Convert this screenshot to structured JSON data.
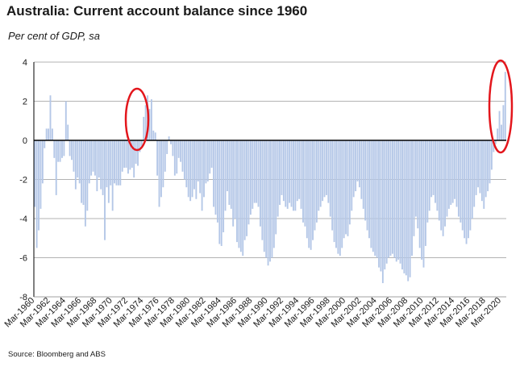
{
  "header": {
    "title": "Australia: Current account balance since 1960",
    "subtitle": "Per cent of GDP, sa"
  },
  "footer": {
    "source": "Source: Bloomberg and ABS"
  },
  "colors": {
    "bar": "#b4c7e7",
    "axis": "#000000",
    "grid": "#9a9a9a",
    "highlight": "#e3161c"
  },
  "chart_data": {
    "type": "bar",
    "title": "Australia: Current account balance since 1960",
    "subtitle": "Per cent of GDP, sa",
    "xlabel": "",
    "ylabel": "",
    "ylim": [
      -8,
      4
    ],
    "yticks": [
      -8,
      -6,
      -4,
      -2,
      0,
      2,
      4
    ],
    "grid": true,
    "legend": "none",
    "x_tick_labels": [
      "Mar-1960",
      "Mar-1962",
      "Mar-1964",
      "Mar-1966",
      "Mar-1968",
      "Mar-1970",
      "Mar-1972",
      "Mar-1974",
      "Mar-1976",
      "Mar-1978",
      "Mar-1980",
      "Mar-1982",
      "Mar-1984",
      "Mar-1986",
      "Mar-1988",
      "Mar-1990",
      "Mar-1992",
      "Mar-1994",
      "Mar-1996",
      "Mar-1998",
      "Mar-2000",
      "Mar-2002",
      "Mar-2004",
      "Mar-2006",
      "Mar-2008",
      "Mar-2010",
      "Mar-2012",
      "Mar-2014",
      "Mar-2016",
      "Mar-2018",
      "Mar-2020"
    ],
    "x_start": "Mar-1960",
    "frequency": "quarterly",
    "annual_series": [
      {
        "year": 1960,
        "values": [
          -3.4,
          -5.5,
          -4.6,
          -3.5
        ]
      },
      {
        "year": 1961,
        "values": [
          -2.2,
          -0.4,
          0.6,
          0.6
        ]
      },
      {
        "year": 1962,
        "values": [
          2.3,
          0.6,
          -0.9,
          -2.8
        ]
      },
      {
        "year": 1963,
        "values": [
          -1.1,
          -1.1,
          -0.9,
          -0.8
        ]
      },
      {
        "year": 1964,
        "values": [
          2.0,
          0.8,
          -0.8,
          -1.0
        ]
      },
      {
        "year": 1965,
        "values": [
          -1.6,
          -2.5,
          -1.9,
          -2.2
        ]
      },
      {
        "year": 1966,
        "values": [
          -3.2,
          -3.3,
          -4.4,
          -3.6
        ]
      },
      {
        "year": 1967,
        "values": [
          -2.2,
          -1.8,
          -1.6,
          -1.8
        ]
      },
      {
        "year": 1968,
        "values": [
          -2.6,
          -1.9,
          -2.5,
          -2.8
        ]
      },
      {
        "year": 1969,
        "values": [
          -5.1,
          -2.4,
          -3.2,
          -2.3
        ]
      },
      {
        "year": 1970,
        "values": [
          -3.6,
          -2.2,
          -2.3,
          -2.3
        ]
      },
      {
        "year": 1971,
        "values": [
          -2.3,
          -1.6,
          -1.4,
          -1.4
        ]
      },
      {
        "year": 1972,
        "values": [
          -1.7,
          -1.5,
          -1.4,
          -1.9
        ]
      },
      {
        "year": 1973,
        "values": [
          -1.2,
          -1.3,
          -0.6,
          -0.3
        ]
      },
      {
        "year": 1974,
        "values": [
          1.2,
          1.8,
          2.3,
          1.6
        ]
      },
      {
        "year": 1975,
        "values": [
          2.1,
          0.5,
          0.4,
          -1.8
        ]
      },
      {
        "year": 1976,
        "values": [
          -3.4,
          -2.9,
          -2.4,
          -1.6
        ]
      },
      {
        "year": 1977,
        "values": [
          -0.7,
          0.2,
          -0.2,
          -0.8
        ]
      },
      {
        "year": 1978,
        "values": [
          -1.8,
          -1.7,
          -0.9,
          -1.1
        ]
      },
      {
        "year": 1979,
        "values": [
          -1.6,
          -2.0,
          -2.4,
          -2.9
        ]
      },
      {
        "year": 1980,
        "values": [
          -3.1,
          -2.9,
          -2.5,
          -3.0
        ]
      },
      {
        "year": 1981,
        "values": [
          -2.1,
          -2.7,
          -3.6,
          -2.9
        ]
      },
      {
        "year": 1982,
        "values": [
          -2.2,
          -2.1,
          -1.7,
          -1.4
        ]
      },
      {
        "year": 1983,
        "values": [
          -3.4,
          -3.8,
          -4.2,
          -5.3
        ]
      },
      {
        "year": 1984,
        "values": [
          -5.4,
          -4.7,
          -3.6,
          -2.6
        ]
      },
      {
        "year": 1985,
        "values": [
          -3.3,
          -3.5,
          -4.4,
          -4.0
        ]
      },
      {
        "year": 1986,
        "values": [
          -5.2,
          -5.5,
          -5.7,
          -5.9
        ]
      },
      {
        "year": 1987,
        "values": [
          -5.1,
          -4.9,
          -4.3,
          -3.8
        ]
      },
      {
        "year": 1988,
        "values": [
          -3.5,
          -3.2,
          -3.2,
          -3.4
        ]
      },
      {
        "year": 1989,
        "values": [
          -4.4,
          -5.1,
          -5.7,
          -6.0
        ]
      },
      {
        "year": 1990,
        "values": [
          -6.4,
          -6.2,
          -6.0,
          -5.5
        ]
      },
      {
        "year": 1991,
        "values": [
          -4.8,
          -3.9,
          -3.3,
          -2.8
        ]
      },
      {
        "year": 1992,
        "values": [
          -3.1,
          -3.4,
          -3.5,
          -3.2
        ]
      },
      {
        "year": 1993,
        "values": [
          -3.4,
          -3.6,
          -3.6,
          -3.1
        ]
      },
      {
        "year": 1994,
        "values": [
          -3.0,
          -3.5,
          -4.2,
          -4.4
        ]
      },
      {
        "year": 1995,
        "values": [
          -5.0,
          -5.5,
          -5.6,
          -5.1
        ]
      },
      {
        "year": 1996,
        "values": [
          -4.6,
          -4.2,
          -3.6,
          -3.4
        ]
      },
      {
        "year": 1997,
        "values": [
          -3.1,
          -2.9,
          -2.8,
          -3.2
        ]
      },
      {
        "year": 1998,
        "values": [
          -3.9,
          -4.6,
          -5.2,
          -5.5
        ]
      },
      {
        "year": 1999,
        "values": [
          -5.8,
          -5.9,
          -5.5,
          -5.0
        ]
      },
      {
        "year": 2000,
        "values": [
          -4.8,
          -4.9,
          -4.3,
          -3.6
        ]
      },
      {
        "year": 2001,
        "values": [
          -2.9,
          -2.6,
          -2.1,
          -2.4
        ]
      },
      {
        "year": 2002,
        "values": [
          -3.0,
          -3.5,
          -4.1,
          -4.6
        ]
      },
      {
        "year": 2003,
        "values": [
          -5.0,
          -5.5,
          -5.7,
          -5.9
        ]
      },
      {
        "year": 2004,
        "values": [
          -6.0,
          -6.5,
          -6.7,
          -7.3
        ]
      },
      {
        "year": 2005,
        "values": [
          -6.6,
          -6.3,
          -6.0,
          -5.9
        ]
      },
      {
        "year": 2006,
        "values": [
          -5.8,
          -6.0,
          -6.2,
          -6.1
        ]
      },
      {
        "year": 2007,
        "values": [
          -6.3,
          -6.6,
          -6.8,
          -6.9
        ]
      },
      {
        "year": 2008,
        "values": [
          -7.2,
          -7.0,
          -5.9,
          -4.9
        ]
      },
      {
        "year": 2009,
        "values": [
          -3.9,
          -4.5,
          -5.5,
          -6.1
        ]
      },
      {
        "year": 2010,
        "values": [
          -6.5,
          -5.4,
          -4.2,
          -3.6
        ]
      },
      {
        "year": 2011,
        "values": [
          -2.9,
          -2.8,
          -3.2,
          -3.6
        ]
      },
      {
        "year": 2012,
        "values": [
          -4.1,
          -4.6,
          -4.9,
          -4.4
        ]
      },
      {
        "year": 2013,
        "values": [
          -3.9,
          -3.5,
          -3.3,
          -3.2
        ]
      },
      {
        "year": 2014,
        "values": [
          -3.0,
          -3.4,
          -3.9,
          -4.2
        ]
      },
      {
        "year": 2015,
        "values": [
          -4.6,
          -5.0,
          -5.3,
          -5.0
        ]
      },
      {
        "year": 2016,
        "values": [
          -4.6,
          -4.0,
          -3.4,
          -2.8
        ]
      },
      {
        "year": 2017,
        "values": [
          -2.4,
          -2.7,
          -3.1,
          -3.5
        ]
      },
      {
        "year": 2018,
        "values": [
          -2.9,
          -2.6,
          -2.2,
          -1.5
        ]
      },
      {
        "year": 2019,
        "values": [
          -0.6,
          -0.2,
          0.6,
          1.5
        ]
      },
      {
        "year": 2020,
        "values": [
          0.8,
          1.8,
          3.5
        ]
      }
    ],
    "annotations": [
      {
        "type": "ellipse",
        "around": "Mar-1973 to Mar-1975 surplus"
      },
      {
        "type": "ellipse",
        "around": "2019 to 2020 surplus"
      }
    ]
  }
}
